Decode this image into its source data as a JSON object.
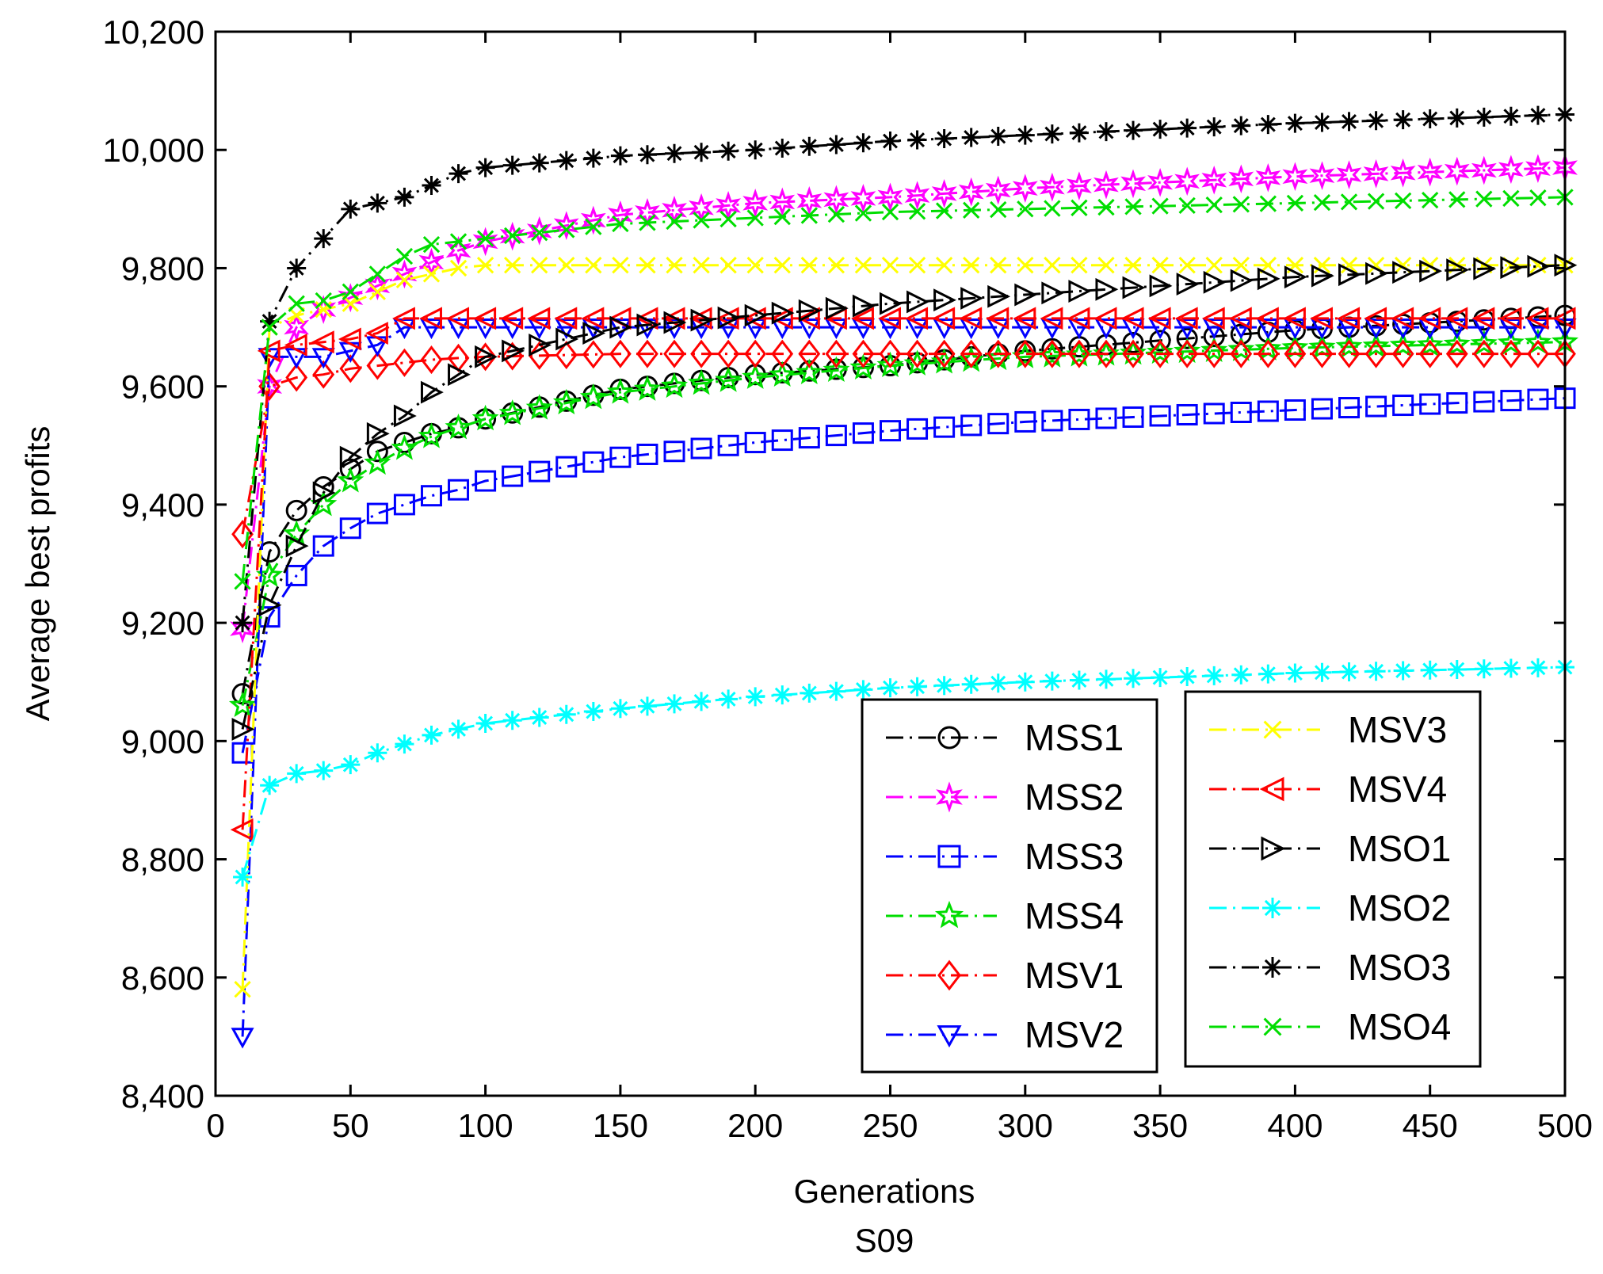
{
  "chart_data": {
    "type": "line",
    "title": "",
    "xlabel": "Generations",
    "subtitle": "S09",
    "ylabel": "Average best profits",
    "xlim": [
      0,
      500
    ],
    "ylim": [
      8400,
      10200
    ],
    "xticks": [
      0,
      50,
      100,
      150,
      200,
      250,
      300,
      350,
      400,
      450,
      500
    ],
    "xtick_labels": [
      "0",
      "50",
      "100",
      "150",
      "200",
      "250",
      "300",
      "350",
      "400",
      "450",
      "500"
    ],
    "yticks": [
      8400,
      8600,
      8800,
      9000,
      9200,
      9400,
      9600,
      9800,
      10000,
      10200
    ],
    "ytick_labels": [
      "8,400",
      "8,600",
      "8,800",
      "9,000",
      "9,200",
      "9,400",
      "9,600",
      "9,800",
      "10,000",
      "10,200"
    ],
    "grid": false,
    "legend_position": "bottom-right, two columns",
    "series": [
      {
        "name": "MSS1",
        "color": "#000000",
        "marker": "circle",
        "x": [
          10,
          20,
          30,
          40,
          50,
          60,
          70,
          80,
          90,
          100,
          150,
          200,
          250,
          300,
          400,
          500
        ],
        "y": [
          9080,
          9320,
          9390,
          9430,
          9460,
          9490,
          9505,
          9520,
          9530,
          9545,
          9595,
          9620,
          9635,
          9660,
          9695,
          9720
        ]
      },
      {
        "name": "MSS2",
        "color": "#ff00ff",
        "marker": "hexagram",
        "x": [
          10,
          20,
          30,
          40,
          50,
          60,
          70,
          80,
          90,
          100,
          150,
          200,
          250,
          300,
          400,
          500
        ],
        "y": [
          9190,
          9600,
          9700,
          9730,
          9750,
          9770,
          9790,
          9810,
          9830,
          9845,
          9890,
          9910,
          9920,
          9935,
          9955,
          9970
        ]
      },
      {
        "name": "MSS3",
        "color": "#0000ff",
        "marker": "square",
        "x": [
          10,
          20,
          30,
          40,
          50,
          60,
          70,
          80,
          90,
          100,
          150,
          200,
          250,
          300,
          400,
          500
        ],
        "y": [
          8980,
          9210,
          9280,
          9330,
          9360,
          9385,
          9400,
          9415,
          9425,
          9440,
          9480,
          9505,
          9525,
          9540,
          9560,
          9580
        ]
      },
      {
        "name": "MSS4",
        "color": "#00dd00",
        "marker": "pentagram",
        "x": [
          10,
          20,
          30,
          40,
          50,
          60,
          70,
          80,
          90,
          100,
          150,
          200,
          250,
          300,
          400,
          500
        ],
        "y": [
          9060,
          9280,
          9350,
          9400,
          9440,
          9470,
          9495,
          9515,
          9530,
          9545,
          9590,
          9615,
          9635,
          9650,
          9665,
          9675
        ]
      },
      {
        "name": "MSV1",
        "color": "#ff0000",
        "marker": "diamond",
        "x": [
          10,
          20,
          30,
          40,
          50,
          60,
          70,
          80,
          90,
          100,
          150,
          200,
          250,
          300,
          400,
          500
        ],
        "y": [
          9350,
          9600,
          9615,
          9620,
          9630,
          9635,
          9640,
          9645,
          9648,
          9650,
          9655,
          9655,
          9655,
          9655,
          9655,
          9655
        ]
      },
      {
        "name": "MSV2",
        "color": "#0000ff",
        "marker": "triangle-down",
        "x": [
          10,
          20,
          30,
          40,
          50,
          60,
          70,
          80,
          90,
          100,
          150,
          200,
          250,
          300,
          400,
          500
        ],
        "y": [
          8500,
          9650,
          9650,
          9650,
          9660,
          9670,
          9700,
          9700,
          9700,
          9700,
          9700,
          9700,
          9700,
          9700,
          9700,
          9700
        ]
      },
      {
        "name": "MSV3",
        "color": "#ffff00",
        "marker": "x",
        "x": [
          10,
          20,
          30,
          40,
          50,
          60,
          70,
          80,
          90,
          100,
          150,
          200,
          250,
          300,
          400,
          500
        ],
        "y": [
          8580,
          9700,
          9720,
          9730,
          9740,
          9760,
          9780,
          9790,
          9800,
          9805,
          9805,
          9805,
          9805,
          9805,
          9805,
          9805
        ]
      },
      {
        "name": "MSV4",
        "color": "#ff0000",
        "marker": "triangle-left",
        "x": [
          10,
          20,
          30,
          40,
          50,
          60,
          70,
          80,
          90,
          100,
          150,
          200,
          250,
          300,
          400,
          500
        ],
        "y": [
          8850,
          9660,
          9670,
          9675,
          9680,
          9690,
          9715,
          9715,
          9715,
          9715,
          9715,
          9715,
          9715,
          9715,
          9715,
          9715
        ]
      },
      {
        "name": "MSO1",
        "color": "#000000",
        "marker": "triangle-right",
        "x": [
          10,
          20,
          30,
          40,
          50,
          60,
          70,
          80,
          90,
          100,
          150,
          200,
          250,
          300,
          400,
          500
        ],
        "y": [
          9020,
          9230,
          9330,
          9420,
          9480,
          9520,
          9550,
          9590,
          9620,
          9650,
          9700,
          9720,
          9740,
          9755,
          9785,
          9805
        ]
      },
      {
        "name": "MSO2",
        "color": "#00ffff",
        "marker": "asterisk",
        "x": [
          10,
          20,
          30,
          40,
          50,
          60,
          70,
          80,
          90,
          100,
          150,
          200,
          250,
          300,
          400,
          500
        ],
        "y": [
          8770,
          8925,
          8945,
          8950,
          8960,
          8980,
          8995,
          9010,
          9020,
          9030,
          9055,
          9075,
          9090,
          9100,
          9115,
          9125
        ]
      },
      {
        "name": "MSO3",
        "color": "#000000",
        "marker": "asterisk",
        "x": [
          10,
          20,
          30,
          40,
          50,
          60,
          70,
          80,
          90,
          100,
          150,
          200,
          250,
          300,
          400,
          500
        ],
        "y": [
          9200,
          9710,
          9800,
          9850,
          9900,
          9910,
          9920,
          9940,
          9960,
          9970,
          9990,
          10000,
          10015,
          10025,
          10045,
          10060
        ]
      },
      {
        "name": "MSO4",
        "color": "#00dd00",
        "marker": "x",
        "x": [
          10,
          20,
          30,
          40,
          50,
          60,
          70,
          80,
          90,
          100,
          150,
          200,
          250,
          300,
          400,
          500
        ],
        "y": [
          9270,
          9700,
          9740,
          9745,
          9760,
          9790,
          9820,
          9840,
          9845,
          9850,
          9875,
          9885,
          9895,
          9900,
          9910,
          9920
        ]
      }
    ]
  }
}
